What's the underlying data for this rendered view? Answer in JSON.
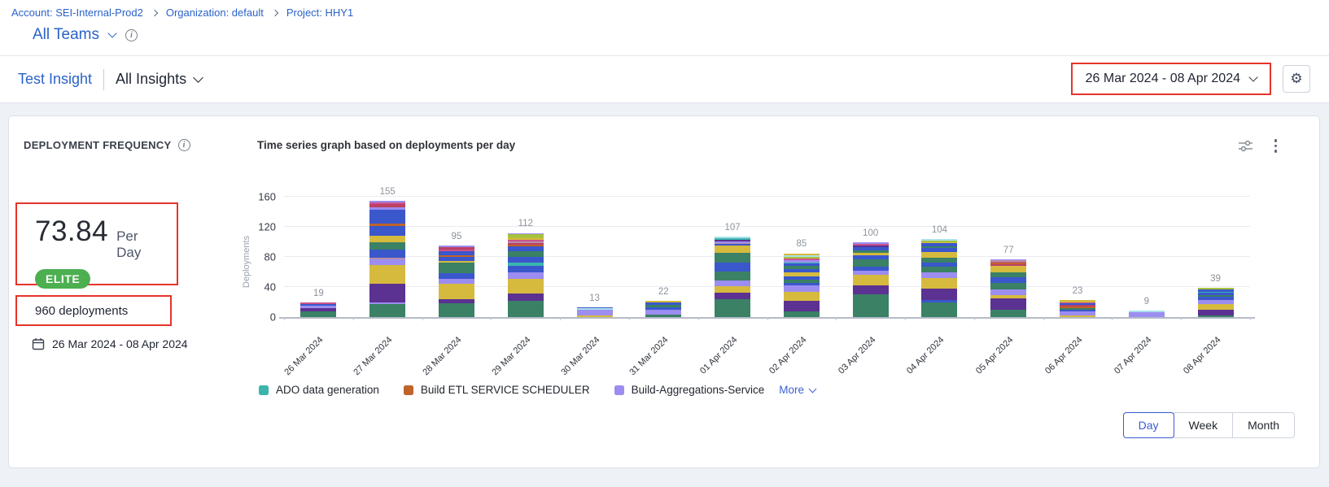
{
  "breadcrumb": {
    "items": [
      "Account: SEI-Internal-Prod2",
      "Organization: default",
      "Project: HHY1"
    ]
  },
  "teams": {
    "label": "All Teams"
  },
  "insight_bar": {
    "insight_name": "Test Insight",
    "insights_dropdown": "All Insights",
    "date_range": "26 Mar 2024  -  08 Apr 2024"
  },
  "widget": {
    "title": "DEPLOYMENT FREQUENCY",
    "metric_value": "73.84",
    "metric_unit": "Per Day",
    "badge": "ELITE",
    "total_deployments": "960 deployments",
    "date_range": "26 Mar 2024 - 08 Apr 2024"
  },
  "chart_data": {
    "type": "bar",
    "stacked": true,
    "title": "Time series graph based on deployments per day",
    "xlabel": "",
    "ylabel": "Deployments",
    "ylim": [
      0,
      160
    ],
    "yticks": [
      0,
      40,
      80,
      120,
      160
    ],
    "grid": true,
    "legend_position": "bottom-left",
    "categories": [
      "26 Mar 2024",
      "27 Mar 2024",
      "28 Mar 2024",
      "29 Mar 2024",
      "30 Mar 2024",
      "31 Mar 2024",
      "01 Apr 2024",
      "02 Apr 2024",
      "03 Apr 2024",
      "04 Apr 2024",
      "05 Apr 2024",
      "06 Apr 2024",
      "07 Apr 2024",
      "08 Apr 2024"
    ],
    "totals": [
      19,
      155,
      95,
      112,
      13,
      22,
      107,
      85,
      100,
      104,
      77,
      23,
      9,
      39
    ],
    "palette": {
      "green": "#3a8165",
      "purple": "#5b3191",
      "gold": "#d6ba3e",
      "lavender": "#9c8df1",
      "blue": "#3a57cc",
      "teal": "#3ab5ae",
      "orange": "#bf6329",
      "pink": "#c9528d",
      "crimson": "#bd4065",
      "lime": "#a8c23d",
      "cyan": "#a8e1ea",
      "mauve": "#b98da6"
    },
    "stacks": [
      [
        [
          "green",
          8
        ],
        [
          "purple",
          4
        ],
        [
          "lavender",
          3
        ],
        [
          "blue",
          2
        ],
        [
          "pink",
          2
        ]
      ],
      [
        [
          "green",
          17
        ],
        [
          "lavender",
          2
        ],
        [
          "purple",
          25
        ],
        [
          "gold",
          25
        ],
        [
          "lavender",
          8
        ],
        [
          "mauve",
          2
        ],
        [
          "blue",
          11
        ],
        [
          "green",
          9
        ],
        [
          "gold",
          9
        ],
        [
          "blue",
          13
        ],
        [
          "orange",
          3
        ],
        [
          "blue",
          19
        ],
        [
          "lavender",
          3
        ],
        [
          "crimson",
          4
        ],
        [
          "pink",
          3
        ],
        [
          "lavender",
          2
        ]
      ],
      [
        [
          "green",
          18
        ],
        [
          "purple",
          6
        ],
        [
          "gold",
          20
        ],
        [
          "lavender",
          7
        ],
        [
          "blue",
          7
        ],
        [
          "green",
          14
        ],
        [
          "gold",
          3
        ],
        [
          "blue",
          5
        ],
        [
          "orange",
          2
        ],
        [
          "blue",
          6
        ],
        [
          "pink",
          2
        ],
        [
          "crimson",
          3
        ],
        [
          "lavender",
          2
        ]
      ],
      [
        [
          "green",
          22
        ],
        [
          "purple",
          9
        ],
        [
          "gold",
          20
        ],
        [
          "lavender",
          8
        ],
        [
          "blue",
          9
        ],
        [
          "teal",
          4
        ],
        [
          "blue",
          8
        ],
        [
          "green",
          8
        ],
        [
          "blue",
          6
        ],
        [
          "orange",
          2
        ],
        [
          "crimson",
          3
        ],
        [
          "mauve",
          2
        ],
        [
          "pink",
          2
        ],
        [
          "gold",
          2
        ],
        [
          "lime",
          5
        ],
        [
          "lavender",
          2
        ]
      ],
      [
        [
          "gold",
          2
        ],
        [
          "lavender",
          8
        ],
        [
          "cyan",
          2
        ],
        [
          "blue",
          1
        ]
      ],
      [
        [
          "green",
          3
        ],
        [
          "lavender",
          7
        ],
        [
          "blue",
          3
        ],
        [
          "green",
          3
        ],
        [
          "blue",
          3
        ],
        [
          "gold",
          3
        ]
      ],
      [
        [
          "green",
          24
        ],
        [
          "purple",
          9
        ],
        [
          "gold",
          8
        ],
        [
          "lavender",
          8
        ],
        [
          "green",
          12
        ],
        [
          "blue",
          12
        ],
        [
          "green",
          12
        ],
        [
          "gold",
          10
        ],
        [
          "blue",
          2
        ],
        [
          "mauve",
          2
        ],
        [
          "lavender",
          2
        ],
        [
          "purple",
          2
        ],
        [
          "teal",
          2
        ],
        [
          "cyan",
          2
        ]
      ],
      [
        [
          "green",
          8
        ],
        [
          "purple",
          14
        ],
        [
          "gold",
          12
        ],
        [
          "lavender",
          8
        ],
        [
          "blue",
          3
        ],
        [
          "green",
          5
        ],
        [
          "blue",
          4
        ],
        [
          "gold",
          6
        ],
        [
          "blue",
          4
        ],
        [
          "green",
          4
        ],
        [
          "blue",
          3
        ],
        [
          "teal",
          2
        ],
        [
          "lavender",
          3
        ],
        [
          "pink",
          2
        ],
        [
          "lime",
          2
        ],
        [
          "cyan",
          2
        ],
        [
          "gold",
          3
        ]
      ],
      [
        [
          "green",
          30
        ],
        [
          "purple",
          12
        ],
        [
          "gold",
          14
        ],
        [
          "lavender",
          6
        ],
        [
          "blue",
          5
        ],
        [
          "green",
          10
        ],
        [
          "blue",
          5
        ],
        [
          "gold",
          3
        ],
        [
          "green",
          4
        ],
        [
          "blue",
          4
        ],
        [
          "purple",
          2
        ],
        [
          "pink",
          2
        ],
        [
          "lavender",
          3
        ]
      ],
      [
        [
          "green",
          20
        ],
        [
          "blue",
          3
        ],
        [
          "purple",
          15
        ],
        [
          "gold",
          14
        ],
        [
          "lavender",
          8
        ],
        [
          "green",
          7
        ],
        [
          "blue",
          6
        ],
        [
          "green",
          6
        ],
        [
          "gold",
          8
        ],
        [
          "blue",
          5
        ],
        [
          "green",
          2
        ],
        [
          "blue",
          4
        ],
        [
          "gold",
          2
        ],
        [
          "lime",
          2
        ],
        [
          "cyan",
          2
        ]
      ],
      [
        [
          "green",
          10
        ],
        [
          "purple",
          15
        ],
        [
          "gold",
          4
        ],
        [
          "lavender",
          8
        ],
        [
          "green",
          8
        ],
        [
          "blue",
          8
        ],
        [
          "green",
          7
        ],
        [
          "gold",
          8
        ],
        [
          "crimson",
          2
        ],
        [
          "orange",
          2
        ],
        [
          "pink",
          2
        ],
        [
          "mauve",
          2
        ],
        [
          "lavender",
          1
        ]
      ],
      [
        [
          "gold",
          2
        ],
        [
          "lavender",
          6
        ],
        [
          "blue",
          2
        ],
        [
          "green",
          2
        ],
        [
          "orange",
          2
        ],
        [
          "crimson",
          2
        ],
        [
          "blue",
          2
        ],
        [
          "pink",
          2
        ],
        [
          "gold",
          3
        ]
      ],
      [
        [
          "lavender",
          7
        ],
        [
          "cyan",
          2
        ]
      ],
      [
        [
          "green",
          2
        ],
        [
          "purple",
          8
        ],
        [
          "gold",
          7
        ],
        [
          "lavender",
          6
        ],
        [
          "blue",
          4
        ],
        [
          "green",
          2
        ],
        [
          "blue",
          3
        ],
        [
          "teal",
          2
        ],
        [
          "blue",
          3
        ],
        [
          "lime",
          2
        ]
      ]
    ],
    "legend": [
      {
        "label": "ADO data generation",
        "color": "#3cb4ab"
      },
      {
        "label": "Build ETL SERVICE SCHEDULER",
        "color": "#bf6329"
      },
      {
        "label": "Build-Aggregations-Service",
        "color": "#9c8df1"
      }
    ],
    "more_label": "More"
  },
  "granularity": {
    "options": [
      "Day",
      "Week",
      "Month"
    ],
    "selected": "Day"
  },
  "colors": {
    "annotation_red": "#e5342a",
    "badge_green": "#4caf50",
    "link_blue": "#2a62c9",
    "active_blue": "#3b5bd0"
  }
}
